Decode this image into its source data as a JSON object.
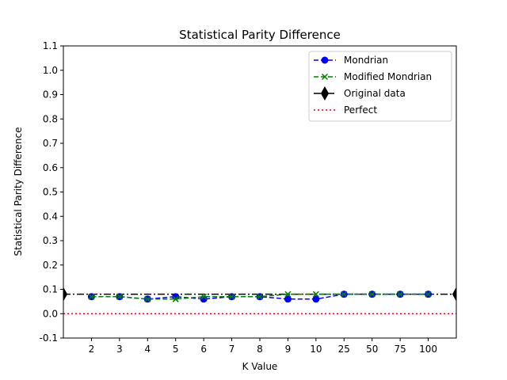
{
  "chart_data": {
    "type": "line",
    "title": "Statistical Parity Difference",
    "xlabel": "K Value",
    "ylabel": "Statistical Parity Difference",
    "categories": [
      "2",
      "3",
      "4",
      "5",
      "6",
      "7",
      "8",
      "9",
      "10",
      "25",
      "50",
      "75",
      "100"
    ],
    "ylim": [
      -0.1,
      1.1
    ],
    "yticks": [
      -0.1,
      0.0,
      0.1,
      0.2,
      0.3,
      0.4,
      0.5,
      0.6,
      0.7,
      0.8,
      0.9,
      1.0,
      1.1
    ],
    "ytick_labels": [
      "-0.1",
      "0.0",
      "0.1",
      "0.2",
      "0.3",
      "0.4",
      "0.5",
      "0.6",
      "0.7",
      "0.8",
      "0.9",
      "1.0",
      "1.1"
    ],
    "grid": false,
    "legend_position": "top-right",
    "series": [
      {
        "name": "Mondrian",
        "color": "#0000ff",
        "linestyle": "dashed",
        "marker": "circle",
        "values": [
          0.07,
          0.07,
          0.06,
          0.07,
          0.06,
          0.07,
          0.07,
          0.06,
          0.06,
          0.08,
          0.08,
          0.08,
          0.08
        ]
      },
      {
        "name": "Modified Mondrian",
        "color": "#008000",
        "linestyle": "dashed",
        "marker": "x",
        "values": [
          0.07,
          0.07,
          0.06,
          0.06,
          0.07,
          0.07,
          0.07,
          0.08,
          0.08,
          0.08,
          0.08,
          0.08,
          0.08
        ]
      }
    ],
    "reference_lines": [
      {
        "name": "Original data",
        "color": "#000000",
        "linestyle": "dashdot",
        "marker": "diamond",
        "value": 0.08
      },
      {
        "name": "Perfect",
        "color": "#ff0000",
        "linestyle": "dotted",
        "marker": "none",
        "value": 0.0
      }
    ]
  }
}
